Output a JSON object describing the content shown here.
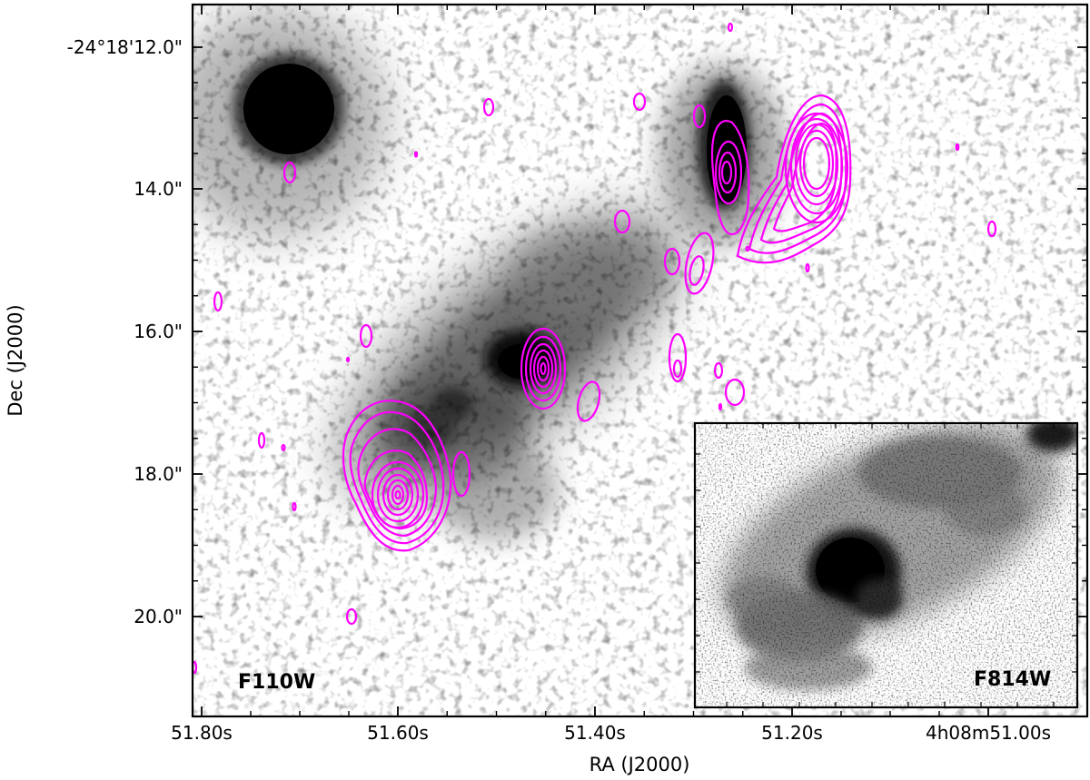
{
  "figure": {
    "main_panel": {
      "filter": "F110W",
      "xlabel": "RA (J2000)",
      "ylabel": "Dec (J2000)",
      "x_ticks": [
        "51.80s",
        "51.60s",
        "51.40s",
        "51.20s",
        "4h08m51.00s"
      ],
      "y_ticks": [
        "-24°18'12.0\"",
        "14.0\"",
        "16.0\"",
        "18.0\"",
        "20.0\""
      ]
    },
    "inset_panel": {
      "filter": "F814W"
    },
    "colors": {
      "contour": "#ff00ff",
      "image_background": "#ffffff",
      "image_emission": "#000000",
      "frame": "#000000"
    }
  }
}
